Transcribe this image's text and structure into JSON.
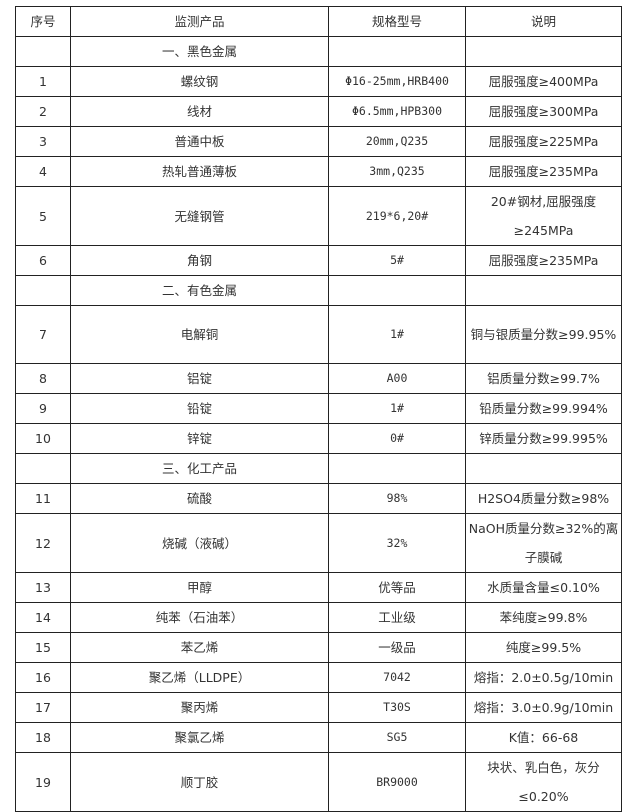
{
  "headers": [
    "序号",
    "监测产品",
    "规格型号",
    "说明"
  ],
  "sections": [
    {
      "title": "一、黑色金属",
      "rows": [
        {
          "no": "1",
          "product": "螺纹钢",
          "spec": "Φ16-25mm,HRB400",
          "desc": "屈服强度≥400MPa"
        },
        {
          "no": "2",
          "product": "线材",
          "spec": "Φ6.5mm,HPB300",
          "desc": "屈服强度≥300MPa"
        },
        {
          "no": "3",
          "product": "普通中板",
          "spec": "20mm,Q235",
          "desc": "屈服强度≥225MPa"
        },
        {
          "no": "4",
          "product": "热轧普通薄板",
          "spec": "3mm,Q235",
          "desc": "屈服强度≥235MPa"
        },
        {
          "no": "5",
          "product": "无缝钢管",
          "spec": "219*6,20#",
          "desc": "20#钢材,屈服强度≥245MPa"
        },
        {
          "no": "6",
          "product": "角钢",
          "spec": "5#",
          "desc": "屈服强度≥235MPa"
        }
      ]
    },
    {
      "title": "二、有色金属",
      "rows": [
        {
          "no": "7",
          "product": "电解铜",
          "spec": "1#",
          "desc": "铜与银质量分数≥99.95%"
        },
        {
          "no": "8",
          "product": "铝锭",
          "spec": "A00",
          "desc": "铝质量分数≥99.7%"
        },
        {
          "no": "9",
          "product": "铅锭",
          "spec": "1#",
          "desc": "铅质量分数≥99.994%"
        },
        {
          "no": "10",
          "product": "锌锭",
          "spec": "0#",
          "desc": "锌质量分数≥99.995%"
        }
      ]
    },
    {
      "title": "三、化工产品",
      "rows": [
        {
          "no": "11",
          "product": "硫酸",
          "spec": "98%",
          "desc": "H2SO4质量分数≥98%"
        },
        {
          "no": "12",
          "product": "烧碱（液碱）",
          "spec": "32%",
          "desc": "NaOH质量分数≥32%的离子膜碱"
        },
        {
          "no": "13",
          "product": "甲醇",
          "spec": "优等品",
          "desc": "水质量含量≤0.10%"
        },
        {
          "no": "14",
          "product": "纯苯（石油苯）",
          "spec": "工业级",
          "desc": "苯纯度≥99.8%"
        },
        {
          "no": "15",
          "product": "苯乙烯",
          "spec": "一级品",
          "desc": "纯度≥99.5%"
        },
        {
          "no": "16",
          "product": "聚乙烯（LLDPE）",
          "spec": "7042",
          "desc": "熔指：2.0±0.5g/10min"
        },
        {
          "no": "17",
          "product": "聚丙烯",
          "spec": "T30S",
          "desc": "熔指：3.0±0.9g/10min"
        },
        {
          "no": "18",
          "product": "聚氯乙烯",
          "spec": "SG5",
          "desc": "K值：66-68"
        },
        {
          "no": "19",
          "product": "顺丁胶",
          "spec": "BR9000",
          "desc": "块状、乳白色，灰分≤0.20%"
        }
      ]
    }
  ]
}
